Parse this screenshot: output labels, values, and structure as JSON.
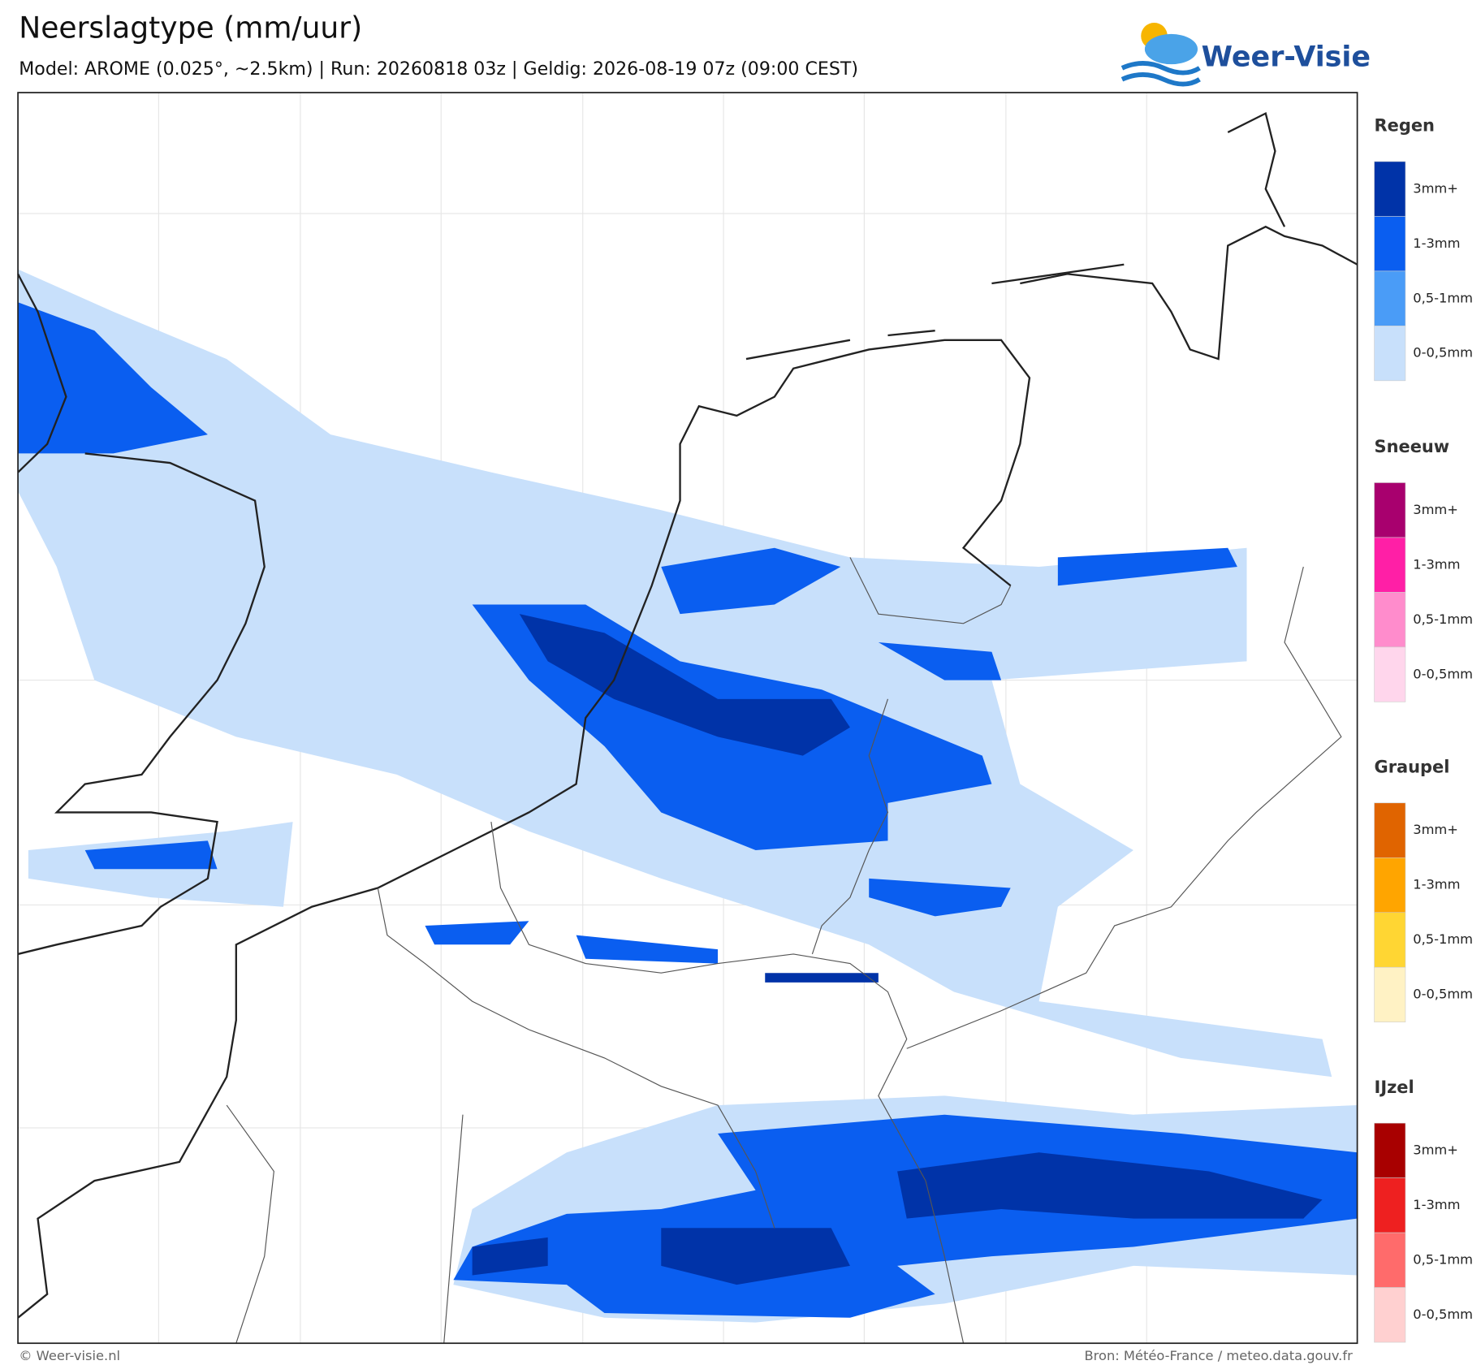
{
  "header": {
    "title": "Neerslagtype (mm/uur)",
    "subtitle": "Model: AROME (0.025°, ~2.5km)  |  Run: 20260818 03z  |  Geldig: 2026-08-19 07z (09:00 CEST)",
    "logo": "Weer-Visie"
  },
  "legend": [
    {
      "name": "Regen",
      "items": [
        {
          "label": "3mm+",
          "color": "#0033a8"
        },
        {
          "label": "1-3mm",
          "color": "#0a5ef0"
        },
        {
          "label": "0,5-1mm",
          "color": "#4a9cf7"
        },
        {
          "label": "0-0,5mm",
          "color": "#c8e0fb"
        }
      ]
    },
    {
      "name": "Sneeuw",
      "items": [
        {
          "label": "3mm+",
          "color": "#a8006e"
        },
        {
          "label": "1-3mm",
          "color": "#ff1fa6"
        },
        {
          "label": "0,5-1mm",
          "color": "#ff8ccc"
        },
        {
          "label": "0-0,5mm",
          "color": "#ffd6ec"
        }
      ]
    },
    {
      "name": "Graupel",
      "items": [
        {
          "label": "3mm+",
          "color": "#e06400"
        },
        {
          "label": "1-3mm",
          "color": "#ffa500"
        },
        {
          "label": "0,5-1mm",
          "color": "#ffd633"
        },
        {
          "label": "0-0,5mm",
          "color": "#fff2c4"
        }
      ]
    },
    {
      "name": "IJzel",
      "items": [
        {
          "label": "3mm+",
          "color": "#a80000"
        },
        {
          "label": "1-3mm",
          "color": "#ee2020"
        },
        {
          "label": "0,5-1mm",
          "color": "#ff6b6b"
        },
        {
          "label": "0-0,5mm",
          "color": "#ffd0d0"
        }
      ]
    }
  ],
  "footer": {
    "left": "© Weer-visie.nl",
    "right": "Bron: Météo-France / meteo.data.gouv.fr"
  }
}
